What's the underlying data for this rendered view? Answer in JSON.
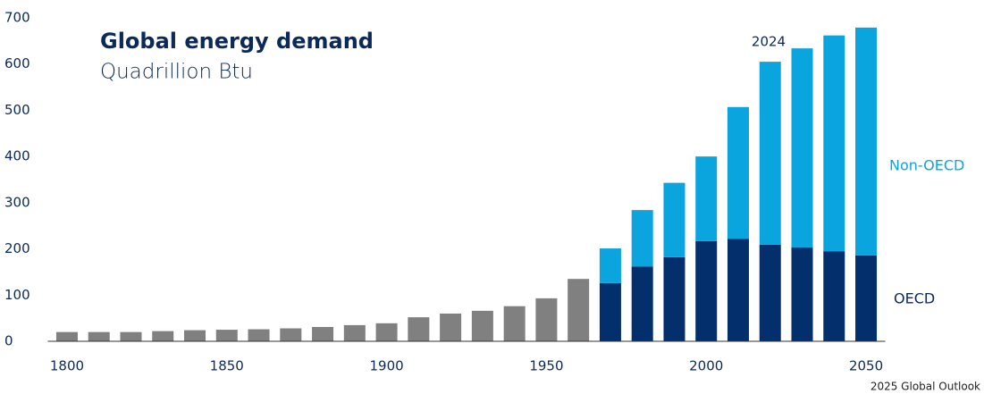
{
  "chart_data": {
    "type": "bar",
    "stacked": true,
    "title": "Global energy demand",
    "subtitle": "Quadrillion Btu",
    "annotations": [
      "2024"
    ],
    "source": "2025 Global Outlook",
    "x": [
      1800,
      1810,
      1820,
      1830,
      1840,
      1850,
      1860,
      1870,
      1880,
      1890,
      1900,
      1910,
      1920,
      1930,
      1940,
      1950,
      1960,
      1970,
      1980,
      1990,
      2000,
      2010,
      2020,
      2030,
      2040,
      2050
    ],
    "series": [
      {
        "color": "#808080",
        "values": [
          20,
          20,
          20,
          22,
          24,
          25,
          26,
          28,
          31,
          35,
          39,
          52,
          60,
          66,
          76,
          93,
          135,
          null,
          null,
          null,
          null,
          null,
          null,
          null,
          null,
          null
        ]
      },
      {
        "name": "OECD",
        "color": "#032f6c",
        "values": [
          null,
          null,
          null,
          null,
          null,
          null,
          null,
          null,
          null,
          null,
          null,
          null,
          null,
          null,
          null,
          null,
          null,
          126,
          162,
          182,
          217,
          222,
          209,
          203,
          195,
          186
        ]
      },
      {
        "name": "Non-OECD",
        "color": "#0aa5df",
        "values": [
          null,
          null,
          null,
          null,
          null,
          null,
          null,
          null,
          null,
          null,
          null,
          null,
          null,
          null,
          null,
          null,
          null,
          75,
          122,
          161,
          183,
          285,
          396,
          431,
          467,
          493
        ]
      }
    ],
    "xlim": [
      1794,
      2056
    ],
    "xticks": [
      1800,
      1850,
      1900,
      1950,
      2000,
      2050
    ],
    "ylim": [
      0,
      700
    ],
    "yticks": [
      0,
      100,
      200,
      300,
      400,
      500,
      600,
      700
    ],
    "grid": false
  }
}
